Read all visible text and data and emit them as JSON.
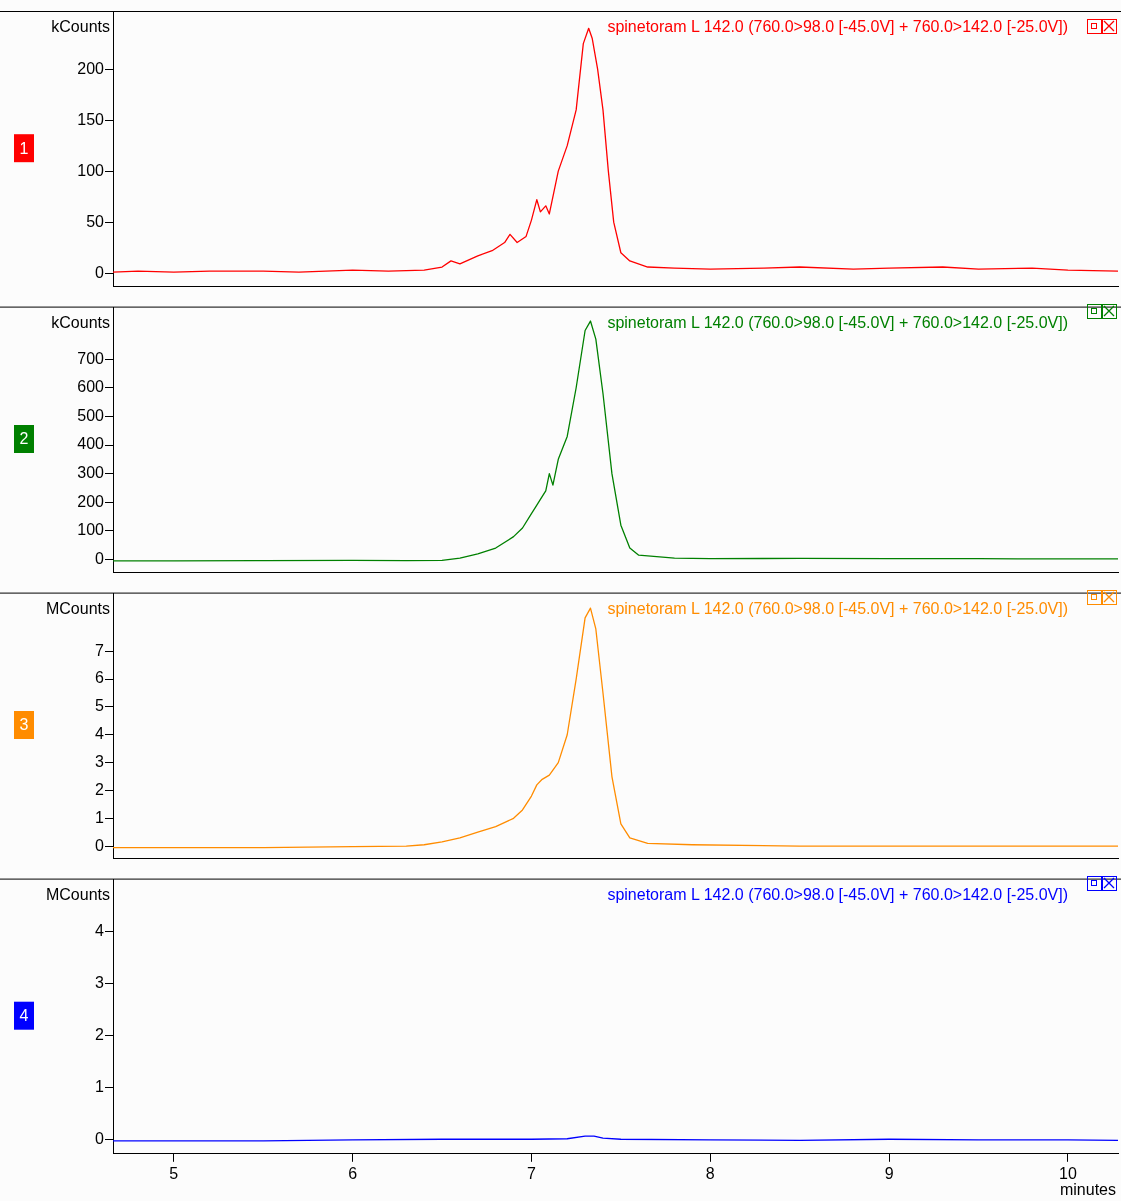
{
  "chart_data": [
    {
      "type": "line",
      "title": "spinetoram L 142.0 (760.0>98.0 [-45.0V] + 760.0>142.0 [-25.0V])",
      "ylabel": "kCounts",
      "annotations": [
        "1"
      ],
      "legend": false,
      "grid": false,
      "tick_labels": "y",
      "xlim": [
        4.66,
        10.28
      ],
      "xticks": [
        5,
        6,
        7,
        8,
        9,
        10
      ],
      "ylim": [
        -13,
        256
      ],
      "yticks": [
        0,
        50,
        100,
        150,
        200
      ],
      "x": [
        4.66,
        4.8,
        5.0,
        5.2,
        5.5,
        5.7,
        6.0,
        6.2,
        6.4,
        6.5,
        6.55,
        6.6,
        6.7,
        6.78,
        6.85,
        6.88,
        6.92,
        6.97,
        7.0,
        7.03,
        7.05,
        7.08,
        7.1,
        7.15,
        7.2,
        7.25,
        7.29,
        7.32,
        7.34,
        7.37,
        7.4,
        7.43,
        7.46,
        7.5,
        7.55,
        7.65,
        7.8,
        8.0,
        8.3,
        8.5,
        8.8,
        9.0,
        9.3,
        9.5,
        9.8,
        10.0,
        10.28
      ],
      "series": [
        {
          "color": "#ff0000",
          "values": [
            1,
            2,
            1,
            2,
            2,
            1,
            3,
            2,
            3,
            6,
            12,
            9,
            17,
            22,
            30,
            38,
            30,
            36,
            52,
            72,
            60,
            66,
            58,
            100,
            125,
            160,
            225,
            240,
            230,
            200,
            160,
            100,
            50,
            20,
            12,
            6,
            5,
            4,
            5,
            6,
            4,
            5,
            6,
            4,
            5,
            3,
            2
          ]
        }
      ]
    },
    {
      "type": "line",
      "title": "spinetoram L 142.0 (760.0>98.0 [-45.0V] + 760.0>142.0 [-25.0V])",
      "ylabel": "kCounts",
      "annotations": [
        "2"
      ],
      "legend": false,
      "grid": false,
      "tick_labels": "y",
      "xlim": [
        4.66,
        10.28
      ],
      "xticks": [
        5,
        6,
        7,
        8,
        9,
        10
      ],
      "ylim": [
        -45,
        880
      ],
      "yticks": [
        0,
        100,
        200,
        300,
        400,
        500,
        600,
        700
      ],
      "x": [
        4.66,
        5.0,
        5.5,
        6.0,
        6.3,
        6.5,
        6.6,
        6.7,
        6.8,
        6.9,
        6.95,
        7.0,
        7.05,
        7.08,
        7.1,
        7.12,
        7.15,
        7.2,
        7.25,
        7.3,
        7.33,
        7.36,
        7.4,
        7.45,
        7.5,
        7.55,
        7.6,
        7.8,
        8.0,
        8.5,
        9.0,
        9.5,
        10.0,
        10.28
      ],
      "series": [
        {
          "color": "#008000",
          "values": [
            -5,
            -5,
            -4,
            -3,
            -4,
            -3,
            5,
            20,
            40,
            80,
            110,
            160,
            210,
            240,
            300,
            260,
            350,
            430,
            600,
            800,
            833,
            770,
            580,
            300,
            120,
            40,
            15,
            5,
            3,
            4,
            3,
            3,
            2,
            2
          ]
        }
      ]
    },
    {
      "type": "line",
      "title": "spinetoram L 142.0 (760.0>98.0 [-45.0V] + 760.0>142.0 [-25.0V])",
      "ylabel": "MCounts",
      "annotations": [
        "3"
      ],
      "legend": false,
      "grid": false,
      "tick_labels": "y",
      "xlim": [
        4.66,
        10.28
      ],
      "xticks": [
        5,
        6,
        7,
        8,
        9,
        10
      ],
      "ylim": [
        -0.44,
        9.07
      ],
      "yticks": [
        0,
        1,
        2,
        3,
        4,
        5,
        6,
        7
      ],
      "x": [
        4.66,
        5.5,
        6.0,
        6.3,
        6.4,
        6.5,
        6.6,
        6.7,
        6.8,
        6.9,
        6.95,
        7.0,
        7.03,
        7.06,
        7.1,
        7.15,
        7.2,
        7.25,
        7.3,
        7.33,
        7.36,
        7.4,
        7.45,
        7.5,
        7.55,
        7.65,
        7.9,
        8.5,
        10.28
      ],
      "series": [
        {
          "color": "#ff8c00",
          "values": [
            -0.05,
            -0.05,
            -0.02,
            0,
            0.05,
            0.15,
            0.3,
            0.5,
            0.7,
            1.0,
            1.3,
            1.8,
            2.2,
            2.4,
            2.55,
            3.0,
            4.0,
            6.0,
            8.2,
            8.55,
            7.8,
            5.5,
            2.5,
            0.8,
            0.3,
            0.1,
            0.05,
            0,
            0
          ]
        }
      ]
    },
    {
      "type": "line",
      "title": "spinetoram L 142.0 (760.0>98.0 [-45.0V] + 760.0>142.0 [-25.0V])",
      "ylabel": "MCounts",
      "xlabel": "minutes",
      "annotations": [
        "4"
      ],
      "legend": false,
      "grid": false,
      "xlim": [
        4.66,
        10.28
      ],
      "xticks": [
        5,
        6,
        7,
        8,
        9,
        10
      ],
      "ylim": [
        -0.28,
        5.0
      ],
      "yticks": [
        0,
        1,
        2,
        3,
        4
      ],
      "x": [
        4.66,
        5.5,
        6.0,
        6.5,
        7.0,
        7.2,
        7.3,
        7.35,
        7.4,
        7.5,
        8.0,
        8.5,
        9.0,
        9.5,
        10.0,
        10.28
      ],
      "series": [
        {
          "color": "#0000ff",
          "values": [
            -0.03,
            -0.03,
            -0.01,
            0,
            0,
            0.01,
            0.06,
            0.06,
            0.02,
            0,
            -0.01,
            -0.02,
            0,
            -0.01,
            -0.01,
            -0.02
          ]
        }
      ]
    }
  ]
}
